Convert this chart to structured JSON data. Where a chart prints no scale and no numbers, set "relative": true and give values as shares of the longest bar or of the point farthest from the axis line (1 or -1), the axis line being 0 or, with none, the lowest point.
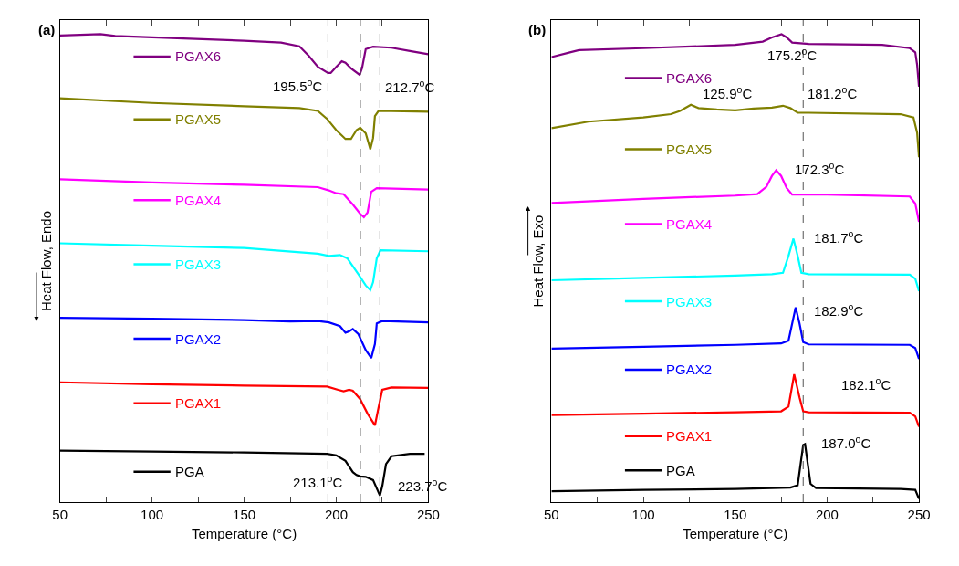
{
  "chart_data": [
    {
      "type": "line",
      "title": "(a)",
      "xlabel": "Temperature (°C)",
      "ylabel": "Heat Flow, Endo",
      "relative": true,
      "xlim": [
        50,
        250
      ],
      "xticks": [
        50,
        {
          "value": 75,
          "label": null
        },
        100,
        {
          "value": 125,
          "label": null
        },
        150,
        {
          "value": 175,
          "label": null
        },
        200,
        {
          "value": 225,
          "label": null
        },
        250
      ],
      "legend": "left",
      "marker": "none",
      "line_style": "solid",
      "ref_lines": [
        {
          "axis": "x",
          "value": 195.5,
          "color": "#555555",
          "line_style": "dashed"
        },
        {
          "axis": "x",
          "value": 213.1,
          "color": "#555555",
          "line_style": "dashed"
        },
        {
          "axis": "x",
          "value": 223.7,
          "color": "#555555",
          "line_style": "dashed"
        }
      ],
      "annotations": [
        "195.5$^{o}$C",
        "212.7$^{o}$C",
        "213.1$^{o}$C",
        "223.7$^{o}$C"
      ],
      "series": [
        {
          "name": "PGAX6",
          "color": "#800080",
          "x": [
            50,
            72,
            80,
            100,
            150,
            170,
            180,
            185,
            190,
            195.5,
            197,
            200,
            203,
            205,
            208,
            212.7,
            214,
            216,
            220,
            230,
            240,
            250
          ],
          "values": [
            0.997,
            1.0,
            0.996,
            0.993,
            0.986,
            0.982,
            0.974,
            0.954,
            0.93,
            0.917,
            0.917,
            0.93,
            0.942,
            0.939,
            0.927,
            0.913,
            0.927,
            0.968,
            0.973,
            0.971,
            0.964,
            0.957
          ]
        },
        {
          "name": "PGAX5",
          "color": "#808000",
          "x": [
            50,
            100,
            150,
            180,
            190,
            195,
            200,
            205,
            208,
            211,
            213,
            216,
            218.5,
            220,
            221,
            223,
            250
          ],
          "values": [
            0.863,
            0.853,
            0.846,
            0.842,
            0.836,
            0.819,
            0.795,
            0.776,
            0.776,
            0.795,
            0.8,
            0.788,
            0.754,
            0.778,
            0.825,
            0.836,
            0.834
          ]
        },
        {
          "name": "PGAX4",
          "color": "#ff00ff",
          "x": [
            50,
            100,
            150,
            190,
            196,
            200,
            204,
            209,
            213,
            215,
            217,
            219,
            222,
            250
          ],
          "values": [
            0.69,
            0.683,
            0.678,
            0.673,
            0.666,
            0.66,
            0.658,
            0.636,
            0.616,
            0.609,
            0.619,
            0.663,
            0.671,
            0.668
          ]
        },
        {
          "name": "PGAX3",
          "color": "#00ffff",
          "x": [
            50,
            100,
            150,
            190,
            196,
            202,
            206,
            212,
            216,
            218.5,
            220,
            222,
            224,
            250
          ],
          "values": [
            0.553,
            0.548,
            0.543,
            0.531,
            0.526,
            0.528,
            0.521,
            0.487,
            0.463,
            0.453,
            0.47,
            0.521,
            0.538,
            0.536
          ]
        },
        {
          "name": "PGAX2",
          "color": "#0000ff",
          "x": [
            50,
            100,
            150,
            175,
            190,
            196,
            202,
            205,
            207,
            209,
            212,
            216,
            219,
            221,
            222,
            225,
            250
          ],
          "values": [
            0.394,
            0.392,
            0.389,
            0.386,
            0.387,
            0.384,
            0.376,
            0.362,
            0.365,
            0.37,
            0.359,
            0.325,
            0.308,
            0.338,
            0.382,
            0.387,
            0.384
          ]
        },
        {
          "name": "PGAX1",
          "color": "#ff0000",
          "x": [
            50,
            100,
            150,
            195,
            201,
            204,
            207,
            209,
            213,
            217,
            221,
            223,
            225,
            230,
            250
          ],
          "values": [
            0.256,
            0.252,
            0.249,
            0.247,
            0.24,
            0.237,
            0.24,
            0.238,
            0.22,
            0.189,
            0.164,
            0.203,
            0.24,
            0.245,
            0.244
          ]
        },
        {
          "name": "PGA",
          "color": "#000000",
          "x": [
            50,
            100,
            150,
            195,
            200,
            205,
            209,
            211,
            213.1,
            216,
            220,
            223.7,
            225,
            227,
            230,
            240,
            248
          ],
          "values": [
            0.11,
            0.108,
            0.106,
            0.103,
            0.1,
            0.088,
            0.064,
            0.058,
            0.055,
            0.054,
            0.047,
            0.014,
            0.034,
            0.081,
            0.098,
            0.103,
            0.103
          ]
        }
      ]
    },
    {
      "type": "line",
      "title": "(b)",
      "xlabel": "Temperature (°C)",
      "ylabel": "Heat Flow, Exo",
      "relative": true,
      "xlim": [
        50,
        250
      ],
      "xticks": [
        50,
        {
          "value": 75,
          "label": null
        },
        100,
        {
          "value": 125,
          "label": null
        },
        150,
        {
          "value": 175,
          "label": null
        },
        200,
        {
          "value": 225,
          "label": null
        },
        250
      ],
      "legend": "left",
      "marker": "none",
      "line_style": "solid",
      "ref_lines": [
        {
          "axis": "x",
          "value": 187.0,
          "color": "#555555",
          "line_style": "dashed"
        }
      ],
      "annotations": [
        "175.2$^{o}$C",
        "125.9$^{o}$C",
        "181.2$^{o}$C",
        "172.3$^{o}$C",
        "181.7$^{o}$C",
        "182.9$^{o}$C",
        "182.1$^{o}$C",
        "187.0$^{o}$C"
      ],
      "series": [
        {
          "name": "PGAX6",
          "color": "#800080",
          "x": [
            50,
            60,
            65,
            100,
            150,
            165,
            170,
            175.2,
            178,
            181,
            190,
            230,
            245,
            248,
            249,
            250
          ],
          "values": [
            0.951,
            0.961,
            0.966,
            0.97,
            0.977,
            0.984,
            0.993,
            1.0,
            0.993,
            0.982,
            0.979,
            0.977,
            0.97,
            0.961,
            0.934,
            0.888
          ]
        },
        {
          "name": "PGAX5",
          "color": "#808000",
          "x": [
            50,
            70,
            100,
            115,
            120,
            125.9,
            130,
            140,
            150,
            160,
            170,
            176,
            180,
            184,
            190,
            240,
            247,
            249,
            250
          ],
          "values": [
            0.799,
            0.813,
            0.822,
            0.829,
            0.836,
            0.849,
            0.842,
            0.839,
            0.837,
            0.841,
            0.843,
            0.847,
            0.842,
            0.832,
            0.832,
            0.829,
            0.822,
            0.789,
            0.737
          ]
        },
        {
          "name": "PGAX4",
          "color": "#ff00ff",
          "x": [
            50,
            100,
            150,
            162,
            167,
            170,
            172.3,
            175,
            178,
            181,
            200,
            245,
            248,
            250
          ],
          "values": [
            0.639,
            0.648,
            0.655,
            0.658,
            0.674,
            0.697,
            0.709,
            0.697,
            0.671,
            0.657,
            0.657,
            0.653,
            0.638,
            0.599
          ]
        },
        {
          "name": "PGAX3",
          "color": "#00ffff",
          "x": [
            50,
            100,
            150,
            170,
            176,
            179,
            181.7,
            184,
            186,
            190,
            245,
            248,
            250
          ],
          "values": [
            0.474,
            0.479,
            0.484,
            0.487,
            0.49,
            0.526,
            0.563,
            0.526,
            0.49,
            0.487,
            0.486,
            0.477,
            0.451
          ]
        },
        {
          "name": "PGAX2",
          "color": "#0000ff",
          "x": [
            50,
            100,
            150,
            175,
            179,
            182.9,
            185,
            187,
            190,
            245,
            248,
            250
          ],
          "values": [
            0.328,
            0.332,
            0.336,
            0.339,
            0.345,
            0.416,
            0.382,
            0.342,
            0.337,
            0.336,
            0.329,
            0.306
          ]
        },
        {
          "name": "PGAX1",
          "color": "#ff0000",
          "x": [
            50,
            100,
            150,
            175,
            179,
            182.1,
            185,
            187,
            190,
            245,
            248,
            250
          ],
          "values": [
            0.186,
            0.189,
            0.192,
            0.194,
            0.204,
            0.273,
            0.224,
            0.194,
            0.192,
            0.191,
            0.183,
            0.161
          ]
        },
        {
          "name": "PGA",
          "color": "#000000",
          "x": [
            50,
            100,
            150,
            180,
            184,
            187,
            188,
            191,
            194,
            240,
            248,
            250
          ],
          "values": [
            0.023,
            0.026,
            0.028,
            0.031,
            0.036,
            0.122,
            0.124,
            0.039,
            0.03,
            0.028,
            0.026,
            0.007
          ]
        }
      ]
    }
  ]
}
